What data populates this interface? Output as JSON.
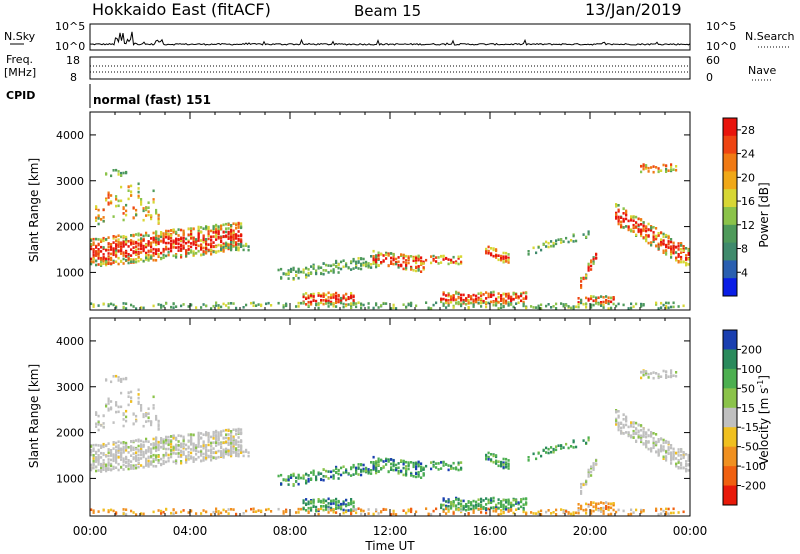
{
  "header": {
    "title": "Hokkaido East (fitACF)",
    "beam": "Beam 15",
    "date": "13/Jan/2019"
  },
  "status_panels": {
    "nsky_label": "N.Sky",
    "nsky_top": "10^5",
    "nsky_bottom": "10^0",
    "nsky_right_top": "10^5",
    "nsky_right_bottom": "10^0",
    "nsearch_label": "N.Search",
    "freq_label_line1": "Freq.",
    "freq_label_line2": "[MHz]",
    "freq_top": "18",
    "freq_bottom": "8",
    "nave_top": "60",
    "nave_bottom": "0",
    "nave_label": "Nave",
    "cpid_label": "CPID",
    "cpid_value": "normal (fast) 151"
  },
  "chart_data": [
    {
      "type": "heatmap",
      "name": "power",
      "ylabel": "Slant Range [km]",
      "xlabel": "Time UT",
      "x_ticks": [
        "00:00",
        "04:00",
        "08:00",
        "12:00",
        "16:00",
        "20:00",
        "00:00"
      ],
      "y_ticks": [
        1000,
        2000,
        3000,
        4000
      ],
      "ylim": [
        180,
        4500
      ],
      "xlim_hours": [
        0,
        24
      ],
      "colorbar": {
        "label": "Power [dB]",
        "ticks": [
          "4",
          "8",
          "12",
          "16",
          "20",
          "24",
          "28"
        ],
        "range": [
          0,
          30
        ],
        "colors": [
          "#0a1ee6",
          "#2a5fb0",
          "#3f8a6c",
          "#4e9a5a",
          "#8bc34a",
          "#d7d735",
          "#f0a818",
          "#f07a14",
          "#ee4412",
          "#e8140c"
        ]
      },
      "regions": [
        {
          "t": [
            0.0,
            6.0
          ],
          "r": [
            900,
            2100
          ],
          "level": "high",
          "desc": "sloped band"
        },
        {
          "t": [
            0.2,
            2.5
          ],
          "r": [
            2100,
            3200
          ],
          "level": "mixed"
        },
        {
          "t": [
            8.5,
            10.5
          ],
          "r": [
            300,
            600
          ],
          "level": "high"
        },
        {
          "t": [
            11.5,
            13.5
          ],
          "r": [
            1100,
            1600
          ],
          "level": "high"
        },
        {
          "t": [
            14.0,
            17.5
          ],
          "r": [
            350,
            600
          ],
          "level": "high"
        },
        {
          "t": [
            19.5,
            21.0
          ],
          "r": [
            400,
            1600
          ],
          "level": "high"
        },
        {
          "t": [
            21.0,
            24.0
          ],
          "r": [
            1100,
            2400
          ],
          "level": "high"
        }
      ]
    },
    {
      "type": "heatmap",
      "name": "velocity",
      "ylabel": "Slant Range [km]",
      "xlabel": "Time UT",
      "x_ticks": [
        "00:00",
        "04:00",
        "08:00",
        "12:00",
        "16:00",
        "20:00",
        "00:00"
      ],
      "y_ticks": [
        1000,
        2000,
        3000,
        4000
      ],
      "ylim": [
        180,
        4500
      ],
      "xlim_hours": [
        0,
        24
      ],
      "colorbar": {
        "label": "Velocity [m s^-1]",
        "ticks": [
          "200",
          "100",
          "50",
          "15",
          "-15",
          "-50",
          "-100",
          "-200"
        ],
        "colors": [
          "#1a3fb0",
          "#2a8a5c",
          "#4caf50",
          "#8bc34a",
          "#c0c0c0",
          "#f0c020",
          "#f09020",
          "#f06010",
          "#e81a0a"
        ]
      }
    }
  ]
}
